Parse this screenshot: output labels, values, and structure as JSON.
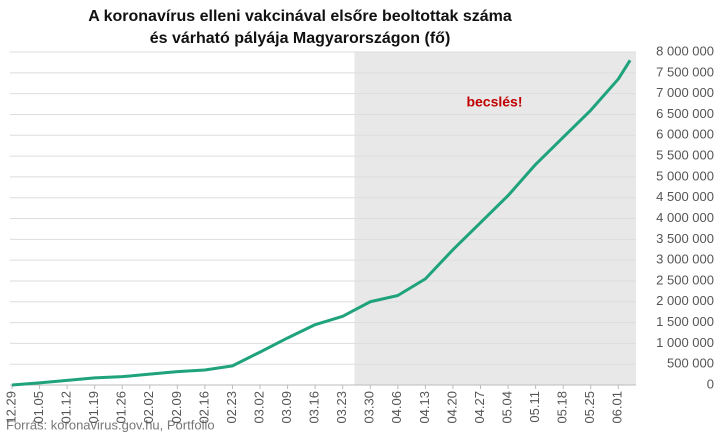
{
  "chart_data": {
    "type": "line",
    "title": [
      "A koronavírus elleni vakcinával elsőre beoltottak száma",
      "és várható pályája Magyarországon (fő)"
    ],
    "source": "Forrás: koronavirus.gov.hu, Portfolio",
    "x": [
      0,
      7,
      14,
      21,
      28,
      35,
      42,
      49,
      56,
      63,
      70,
      77,
      84,
      87,
      91,
      98,
      105,
      112,
      119,
      126,
      133,
      140,
      147,
      154,
      157
    ],
    "series": [
      {
        "color": "#1fa37c",
        "values": [
          0,
          50000,
          110000,
          170000,
          200000,
          260000,
          320000,
          360000,
          460000,
          790000,
          1130000,
          1450000,
          1650000,
          1800000,
          2000000,
          2150000,
          2550000,
          3250000,
          3900000,
          4550000,
          5300000,
          5950000,
          6600000,
          7350000,
          7800000
        ]
      }
    ],
    "xlim": [
      -0.5,
      158.5
    ],
    "xticks": [
      {
        "value": 0,
        "label": "12.29"
      },
      {
        "value": 7,
        "label": "01.05"
      },
      {
        "value": 14,
        "label": "01.12"
      },
      {
        "value": 21,
        "label": "01.19"
      },
      {
        "value": 28,
        "label": "01.26"
      },
      {
        "value": 35,
        "label": "02.02"
      },
      {
        "value": 42,
        "label": "02.09"
      },
      {
        "value": 49,
        "label": "02.16"
      },
      {
        "value": 56,
        "label": "02.23"
      },
      {
        "value": 63,
        "label": "03.02"
      },
      {
        "value": 70,
        "label": "03.09"
      },
      {
        "value": 77,
        "label": "03.16"
      },
      {
        "value": 84,
        "label": "03.23"
      },
      {
        "value": 91,
        "label": "03.30"
      },
      {
        "value": 98,
        "label": "04.06"
      },
      {
        "value": 105,
        "label": "04.13"
      },
      {
        "value": 112,
        "label": "04.20"
      },
      {
        "value": 119,
        "label": "04.27"
      },
      {
        "value": 126,
        "label": "05.04"
      },
      {
        "value": 133,
        "label": "05.11"
      },
      {
        "value": 140,
        "label": "05.18"
      },
      {
        "value": 147,
        "label": "05.25"
      },
      {
        "value": 154,
        "label": "06.01"
      }
    ],
    "ylim": [
      0,
      8000000
    ],
    "yticks": [
      0,
      {
        "value": 500000,
        "label": "500 000"
      },
      {
        "value": 1000000,
        "label": "1 000 000"
      },
      {
        "value": 1500000,
        "label": "1 500 000"
      },
      {
        "value": 2000000,
        "label": "2 000 000"
      },
      {
        "value": 2500000,
        "label": "2 500 000"
      },
      {
        "value": 3000000,
        "label": "3 000 000"
      },
      {
        "value": 3500000,
        "label": "3 500 000"
      },
      {
        "value": 4000000,
        "label": "4 000 000"
      },
      {
        "value": 4500000,
        "label": "4 500 000"
      },
      {
        "value": 5000000,
        "label": "5 000 000"
      },
      {
        "value": 5500000,
        "label": "5 500 000"
      },
      {
        "value": 6000000,
        "label": "6 000 000"
      },
      {
        "value": 6500000,
        "label": "6 500 000"
      },
      {
        "value": 7000000,
        "label": "7 000 000"
      },
      {
        "value": 7500000,
        "label": "7 500 000"
      },
      {
        "value": 8000000,
        "label": "8 000 000"
      }
    ],
    "grid": true,
    "shaded_region": {
      "x": [
        87,
        158.5
      ],
      "color": "#e8e8e8",
      "label": "becslés!",
      "label_color": "#c00000"
    }
  }
}
